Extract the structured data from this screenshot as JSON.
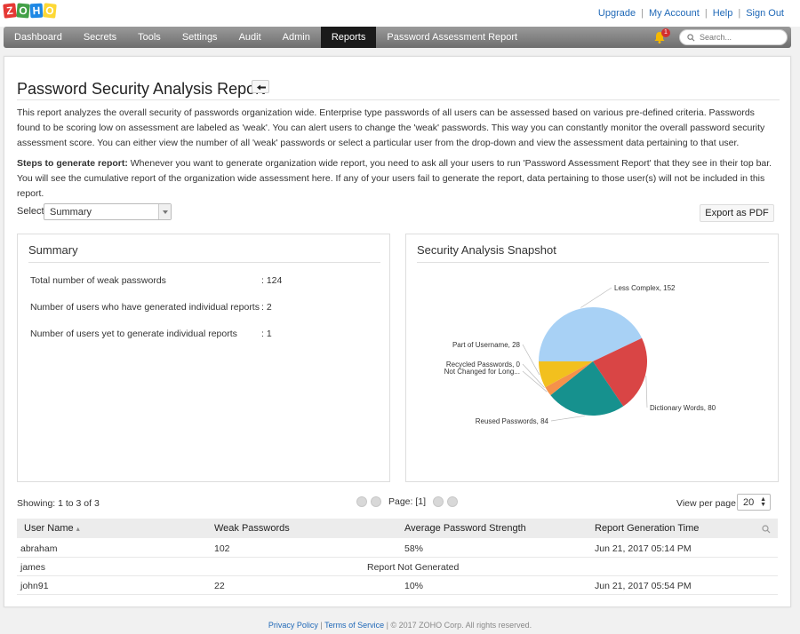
{
  "logo": {
    "letters": [
      "Z",
      "O",
      "H",
      "O"
    ],
    "colors": [
      "#e53935",
      "#43a047",
      "#1e88e5",
      "#fdd835"
    ]
  },
  "top_links": {
    "upgrade": "Upgrade",
    "my_account": "My Account",
    "help": "Help",
    "sign_out": "Sign Out",
    "separator": "|"
  },
  "nav": {
    "items": [
      "Dashboard",
      "Secrets",
      "Tools",
      "Settings",
      "Audit",
      "Admin",
      "Reports",
      "Password Assessment Report"
    ],
    "active": "Reports",
    "notification_count": "1",
    "search_placeholder": "Search..."
  },
  "page": {
    "title": "Password Security Analysis Report",
    "description": "This report analyzes the overall security of passwords organization wide. Enterprise type passwords of all users can be assessed based on various pre-defined criteria. Passwords found to be scoring low on assessment are labeled as 'weak'. You can alert users to change the 'weak' passwords. This way you can constantly monitor the overall password security assessment score. You can either view the number of all 'weak' passwords or select a particular user from the drop-down and view the assessment data pertaining to that user.",
    "steps_label": "Steps to generate report:",
    "steps_text": " Whenever you want to generate organization wide report, you need to ask all your users to run 'Password Assessment Report' that they see in their top bar. You will see the cumulative report of the organization wide assessment here. If any of your users fail to generate the report, data pertaining to those user(s) will not be included in this report.",
    "select_label": "Select",
    "select_value": "Summary",
    "export_label": "Export as PDF"
  },
  "summary": {
    "title": "Summary",
    "rows": [
      {
        "label": "Total number of weak passwords",
        "value": ": 124"
      },
      {
        "label": "Number of users who have generated individual reports",
        "value": ": 2"
      },
      {
        "label": "Number of users yet to generate individual reports",
        "value": ": 1"
      }
    ]
  },
  "snapshot": {
    "title": "Security Analysis Snapshot"
  },
  "chart_data": {
    "type": "pie",
    "slices": [
      {
        "label": "Less Complex, 152",
        "name": "Less Complex",
        "value": 152,
        "color": "#a8d1f5"
      },
      {
        "label": "Dictionary Words, 80",
        "name": "Dictionary Words",
        "value": 80,
        "color": "#d94545"
      },
      {
        "label": "Reused Passwords, 84",
        "name": "Reused Passwords",
        "value": 84,
        "color": "#16918e"
      },
      {
        "label": "Not Changed for Long...",
        "name": "Not Changed for Long...",
        "value": 10,
        "color": "#f5914a"
      },
      {
        "label": "Recycled Passwords, 0",
        "name": "Recycled Passwords",
        "value": 0,
        "color": "#9c6ade"
      },
      {
        "label": "Part of Username, 28",
        "name": "Part of Username",
        "value": 28,
        "color": "#f2c01e"
      }
    ]
  },
  "pagination": {
    "showing": "Showing: 1 to 3 of 3",
    "page_label": "Page: [1]",
    "view_per_page_label": "View per page",
    "view_per_page_value": "20"
  },
  "table": {
    "headers": [
      "User Name",
      "Weak Passwords",
      "Average Password Strength",
      "Report Generation Time"
    ],
    "sort_indicator": "▴",
    "rows": [
      {
        "user": "abraham",
        "weak": "102",
        "strength": "58%",
        "time": "Jun 21, 2017 05:14 PM",
        "note": ""
      },
      {
        "user": "james",
        "weak": "",
        "strength": "",
        "time": "",
        "note": "Report Not Generated"
      },
      {
        "user": "john91",
        "weak": "22",
        "strength": "10%",
        "time": "Jun 21, 2017 05:54 PM",
        "note": ""
      }
    ]
  },
  "footer": {
    "privacy": "Privacy Policy",
    "terms": "Terms of Service",
    "sep": "|",
    "copyright": "| © 2017 ZOHO Corp. All rights reserved."
  }
}
